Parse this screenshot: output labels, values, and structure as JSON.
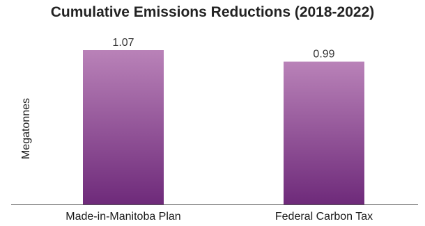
{
  "chart_data": {
    "type": "bar",
    "title": "Cumulative Emissions Reductions (2018-2022)",
    "ylabel": "Megatonnes",
    "xlabel": "",
    "categories": [
      "Made-in-Manitoba Plan",
      "Federal Carbon Tax"
    ],
    "values": [
      1.07,
      0.99
    ],
    "value_labels": [
      "1.07",
      "0.99"
    ],
    "ylim": [
      0,
      1.07
    ],
    "grid": false,
    "legend": "none",
    "bar_gradient": [
      "#b982b8",
      "#6e2a7a"
    ],
    "axis_color": "#555555"
  }
}
